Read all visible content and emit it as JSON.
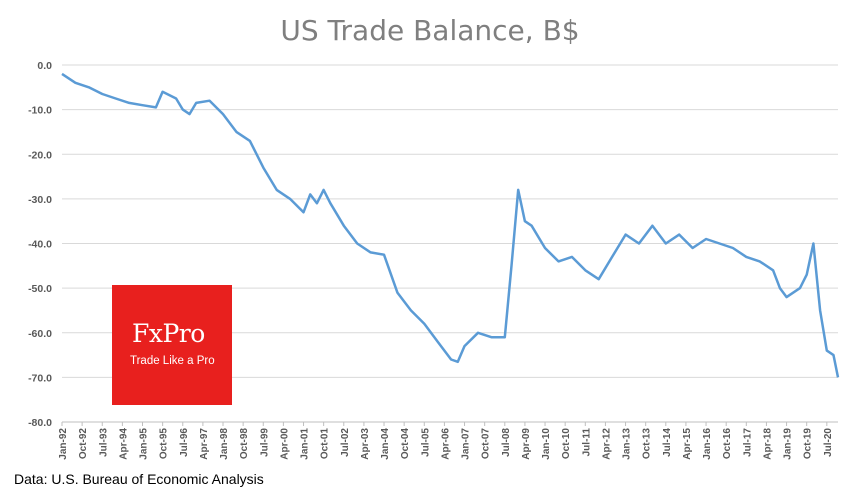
{
  "chart_data": {
    "type": "line",
    "title": "US Trade Balance, B$",
    "xlabel": "",
    "ylabel": "",
    "ylim": [
      -80,
      0
    ],
    "yticks": [
      "0.0",
      "-10.0",
      "-20.0",
      "-30.0",
      "-40.0",
      "-50.0",
      "-60.0",
      "-70.0",
      "-80.0"
    ],
    "xticks": [
      "Jan-92",
      "Oct-92",
      "Jul-93",
      "Apr-94",
      "Jan-95",
      "Oct-95",
      "Jul-96",
      "Apr-97",
      "Jan-98",
      "Oct-98",
      "Jul-99",
      "Apr-00",
      "Jan-01",
      "Oct-01",
      "Jul-02",
      "Apr-03",
      "Jan-04",
      "Oct-04",
      "Jul-05",
      "Apr-06",
      "Jan-07",
      "Oct-07",
      "Jul-08",
      "Apr-09",
      "Jan-10",
      "Oct-10",
      "Jul-11",
      "Apr-12",
      "Jan-13",
      "Oct-13",
      "Jul-14",
      "Apr-15",
      "Jan-16",
      "Oct-16",
      "Jul-17",
      "Apr-18",
      "Jan-19",
      "Oct-19",
      "Jul-20"
    ],
    "grid": "horizontal",
    "color": "#5b9bd5",
    "series": [
      {
        "x": [
          "Jan-92",
          "Jul-92",
          "Jan-93",
          "Jul-93",
          "Jan-94",
          "Jul-94",
          "Jan-95",
          "Jul-95",
          "Oct-95",
          "Apr-96",
          "Jul-96",
          "Oct-96",
          "Jan-97",
          "Jul-97",
          "Jan-98",
          "Jul-98",
          "Jan-99",
          "Jul-99",
          "Jan-00",
          "Jul-00",
          "Jan-01",
          "Apr-01",
          "Jul-01",
          "Oct-01",
          "Jan-02",
          "Jul-02",
          "Jan-03",
          "Jul-03",
          "Jan-04",
          "Jul-04",
          "Jan-05",
          "Jul-05",
          "Jan-06",
          "Jul-06",
          "Oct-06",
          "Jan-07",
          "Jul-07",
          "Jan-08",
          "Jul-08",
          "Oct-08",
          "Jan-09",
          "Apr-09",
          "Jul-09",
          "Jan-10",
          "Jul-10",
          "Jan-11",
          "Jul-11",
          "Jan-12",
          "Jul-12",
          "Jan-13",
          "Jul-13",
          "Jan-14",
          "Jul-14",
          "Jan-15",
          "Jul-15",
          "Jan-16",
          "Jul-16",
          "Jan-17",
          "Jul-17",
          "Jan-18",
          "Jul-18",
          "Oct-18",
          "Jan-19",
          "Jul-19",
          "Oct-19",
          "Jan-20",
          "Apr-20",
          "Jul-20",
          "Oct-20",
          "Dec-20"
        ],
        "values": [
          -2.0,
          -4.0,
          -5.0,
          -6.5,
          -7.5,
          -8.5,
          -9.0,
          -9.5,
          -6.0,
          -7.5,
          -10.0,
          -11.0,
          -8.5,
          -8.0,
          -11.0,
          -15.0,
          -17.0,
          -23.0,
          -28.0,
          -30.0,
          -33.0,
          -29.0,
          -31.0,
          -28.0,
          -31.0,
          -36.0,
          -40.0,
          -42.0,
          -42.5,
          -51.0,
          -55.0,
          -58.0,
          -62.0,
          -66.0,
          -66.5,
          -63.0,
          -60.0,
          -61.0,
          -61.0,
          -45.0,
          -28.0,
          -35.0,
          -36.0,
          -41.0,
          -44.0,
          -43.0,
          -46.0,
          -48.0,
          -43.0,
          -38.0,
          -40.0,
          -36.0,
          -40.0,
          -38.0,
          -41.0,
          -39.0,
          -40.0,
          -41.0,
          -43.0,
          -44.0,
          -46.0,
          -50.0,
          -52.0,
          -50.0,
          -47.0,
          -40.0,
          -55.0,
          -64.0,
          -65.0,
          -70.0
        ]
      }
    ]
  },
  "source_note": "Data: U.S. Bureau of Economic Analysis",
  "logo": {
    "brand": "FxPro",
    "tagline": "Trade Like a Pro",
    "color": "#e8201e"
  }
}
